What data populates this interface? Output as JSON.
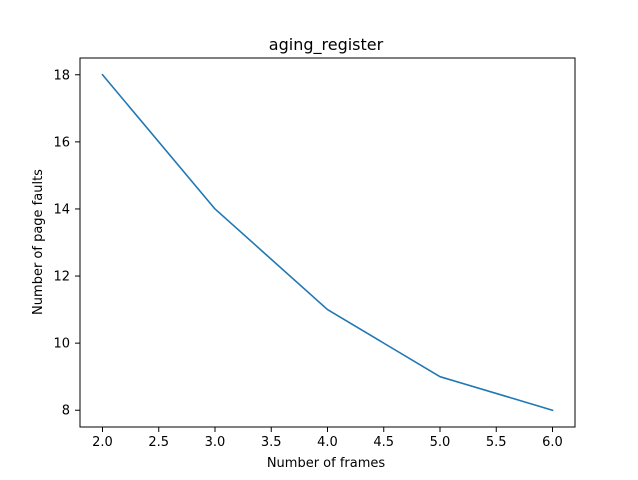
{
  "chart_data": {
    "type": "line",
    "title": "aging_register",
    "xlabel": "Number of frames",
    "ylabel": "Number of page faults",
    "xlim": [
      1.8,
      6.2
    ],
    "ylim": [
      7.5,
      18.5
    ],
    "xticks": [
      "2.0",
      "2.5",
      "3.0",
      "3.5",
      "4.0",
      "4.5",
      "5.0",
      "5.5",
      "6.0"
    ],
    "yticks": [
      "8",
      "10",
      "12",
      "14",
      "16",
      "18"
    ],
    "grid": false,
    "series": [
      {
        "color": "#1f77b4",
        "points": [
          {
            "x": 2,
            "y": 18
          },
          {
            "x": 3,
            "y": 14
          },
          {
            "x": 4,
            "y": 11
          },
          {
            "x": 5,
            "y": 9
          },
          {
            "x": 6,
            "y": 8
          }
        ]
      }
    ]
  }
}
